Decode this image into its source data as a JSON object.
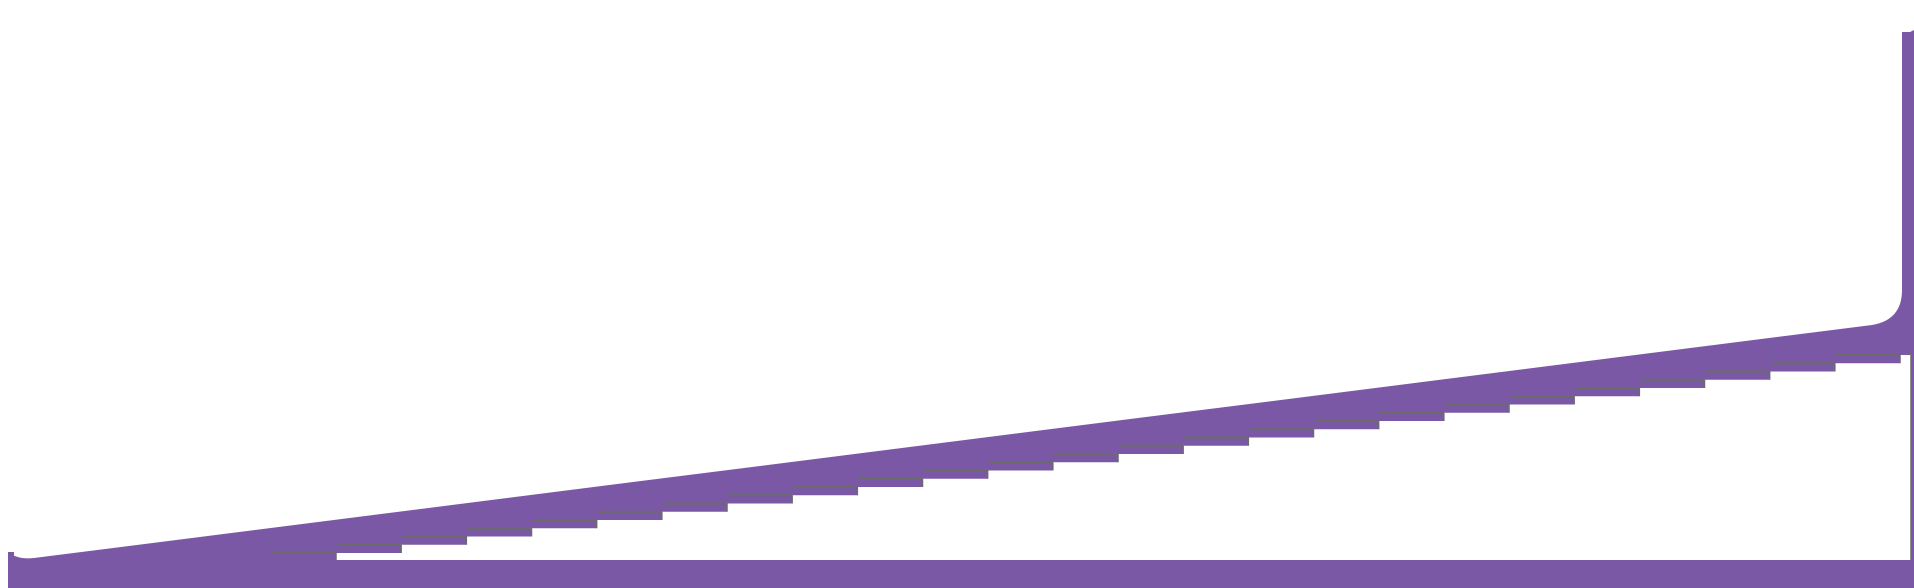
{
  "colors": {
    "background": "#ffffff",
    "wedge_fill": "#7b58a6",
    "step_edge": "#6b6b6b"
  },
  "shape": {
    "kind": "ramp-wedge",
    "step_count": 25
  }
}
